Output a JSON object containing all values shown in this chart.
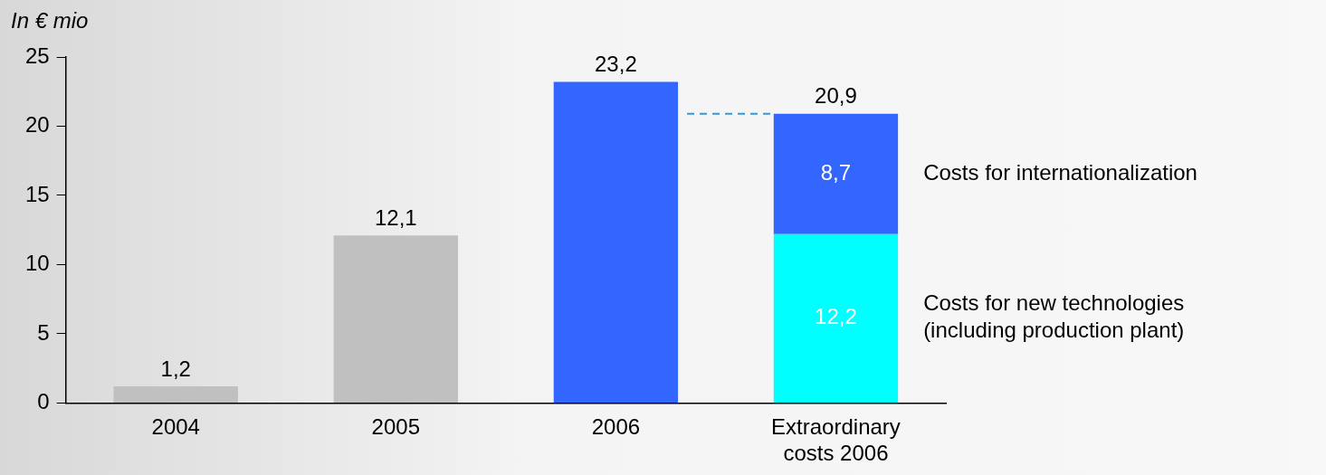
{
  "chart_data": {
    "type": "bar",
    "stacked": true,
    "ylabel": "In € mio",
    "categories": [
      "2004",
      "2005",
      "2006",
      "Extraordinary costs 2006"
    ],
    "series": [
      {
        "colors": [
          "#c0c0c0",
          "#c0c0c0",
          "#3366ff",
          null
        ],
        "values": [
          1.2,
          12.1,
          23.2,
          null
        ],
        "value_labels": [
          "1,2",
          "12,1",
          "23,2",
          null
        ]
      },
      {
        "name": "Costs for new technologies\n(including production plant)",
        "color": "#00ffff",
        "values": [
          null,
          null,
          null,
          12.2
        ],
        "value_labels": [
          null,
          null,
          null,
          "12,2"
        ]
      },
      {
        "name": "Costs for internationalization",
        "color": "#3366ff",
        "values": [
          null,
          null,
          null,
          8.7
        ],
        "value_labels": [
          null,
          null,
          null,
          "8,7"
        ]
      }
    ],
    "totals": [
      null,
      null,
      null,
      "20,9"
    ],
    "ref_lines": [
      {
        "axis": "y",
        "value": 20.9,
        "color": "#3399dd",
        "line_style": "dashed"
      }
    ],
    "ylim": [
      0,
      25
    ],
    "yticks": [
      0,
      5,
      10,
      15,
      20,
      25
    ],
    "grid": false,
    "legend": false
  }
}
